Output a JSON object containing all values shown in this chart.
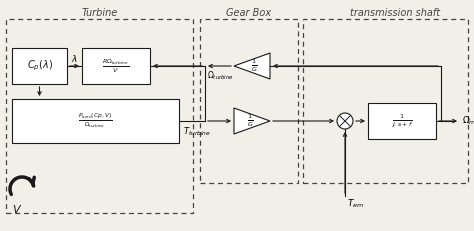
{
  "bg_color": "#f0efe8",
  "line_color": "#1a1a1a",
  "box_bg": "#ffffff",
  "dashed_color": "#444444",
  "title_turbine": "Turbine",
  "title_gearbox": "Gear Box",
  "title_shaft": "transmission shaft",
  "label_cp": "$C_p(\\lambda)$",
  "label_romega": "$\\frac{R\\Omega_{turbine}}{V}$",
  "label_paero": "$\\frac{P_{aero}(Cp,V)}{\\Omega_{turbine}}$",
  "label_1G_top": "$\\frac{1}{G}$",
  "label_1G_bot": "$\\frac{1}{G}$",
  "label_1Jsf": "$\\frac{1}{J.s+f}$",
  "label_lambda": "$\\lambda$",
  "label_omega_turbine": "$\\Omega_{turbine}$",
  "label_T_turbine": "$T_{turbine}$",
  "label_T_em": "$T_{em}$",
  "label_omega_mec": "$\\Omega_{mec}$",
  "label_V": "$V$"
}
